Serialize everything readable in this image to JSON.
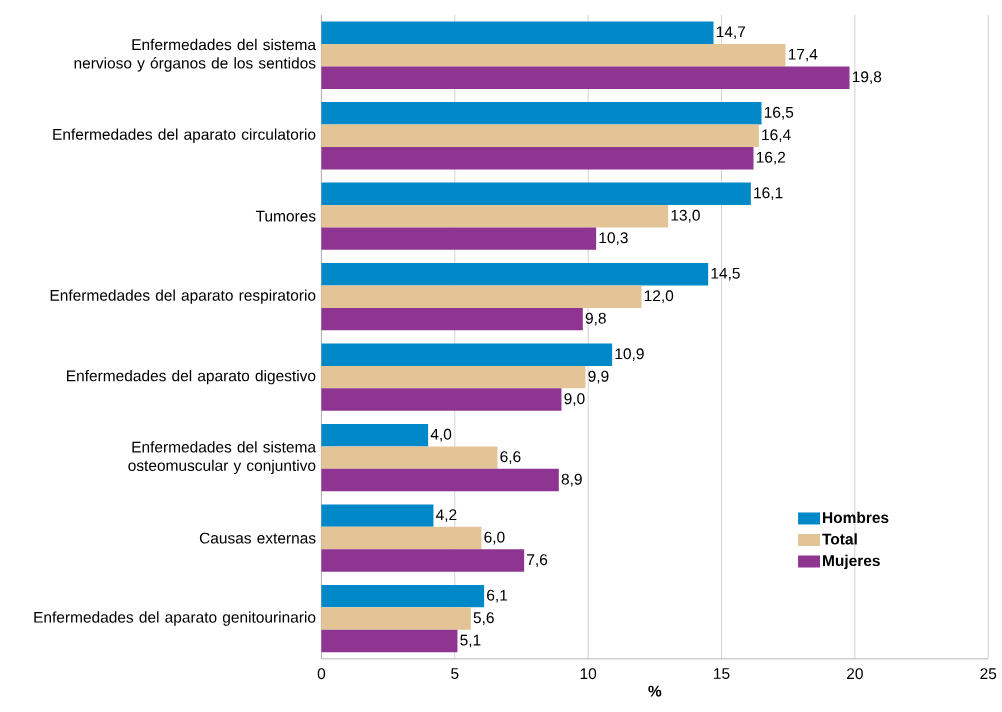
{
  "chart_data": {
    "type": "bar",
    "orientation": "horizontal",
    "xlabel": "%",
    "categories": [
      "Enfermedades del sistema nervioso y órganos de los sentidos",
      "Enfermedades del aparato circulatorio",
      "Tumores",
      "Enfermedades del aparato respiratorio",
      "Enfermedades del aparato digestivo",
      "Enfermedades del sistema osteomuscular y conjuntivo",
      "Causas externas",
      "Enfermedades del aparato genitourinario"
    ],
    "series": [
      {
        "name": "Hombres",
        "color": "#0088c9",
        "values": [
          14.7,
          16.5,
          16.1,
          14.5,
          10.9,
          4.0,
          4.2,
          6.1
        ],
        "value_labels": [
          "14,7",
          "16,5",
          "16,1",
          "14,5",
          "10,9",
          "4,0",
          "4,2",
          "6,1"
        ]
      },
      {
        "name": "Total",
        "color": "#e3c496",
        "values": [
          17.4,
          16.4,
          13.0,
          12.0,
          9.9,
          6.6,
          6.0,
          5.6
        ],
        "value_labels": [
          "17,4",
          "16,4",
          "13,0",
          "12,0",
          "9,9",
          "6,6",
          "6,0",
          "5,6"
        ]
      },
      {
        "name": "Mujeres",
        "color": "#8e3591",
        "values": [
          19.8,
          16.2,
          10.3,
          9.8,
          9.0,
          8.9,
          7.6,
          5.1
        ],
        "value_labels": [
          "19,8",
          "16,2",
          "10,3",
          "9,8",
          "9,0",
          "8,9",
          "7,6",
          "5,1"
        ]
      }
    ],
    "xlim": [
      0,
      25
    ],
    "xticks": [
      0,
      5,
      10,
      15,
      20,
      25
    ],
    "grid": "x",
    "legend": "bottom right"
  }
}
